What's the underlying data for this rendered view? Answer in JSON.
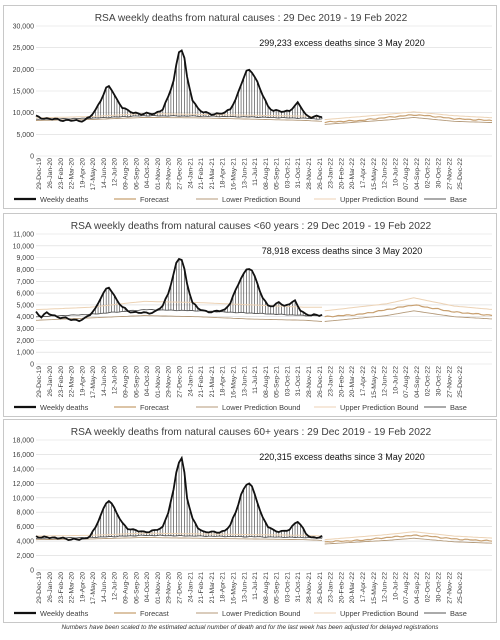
{
  "footnote": "Numbers have been scaled to the estimated actual number of death and for the last week has been adjusted for delayed registrations",
  "colors": {
    "weekly": "#111111",
    "forecast": "#c8a070",
    "lower": "#b49a7a",
    "upper": "#ecd2b4",
    "base": "#555555",
    "grid": "#d9d9d9"
  },
  "x_ticks": [
    "29-Dec-19",
    "26-Jan-20",
    "23-Feb-20",
    "22-Mar-20",
    "19-Apr-20",
    "17-May-20",
    "14-Jun-20",
    "12-Jul-20",
    "09-Aug-20",
    "06-Sep-20",
    "04-Oct-20",
    "01-Nov-20",
    "29-Nov-20",
    "27-Dec-20",
    "24-Jan-21",
    "21-Feb-21",
    "21-Mar-21",
    "18-Apr-21",
    "16-May-21",
    "13-Jun-21",
    "11-Jul-21",
    "08-Aug-21",
    "05-Sep-21",
    "03-Oct-21",
    "31-Oct-21",
    "28-Nov-21",
    "26-Dec-21",
    "23-Jan-22",
    "20-Feb-22",
    "20-Mar-22",
    "17-Apr-22",
    "15-May-22",
    "12-Jun-22",
    "10-Jul-22",
    "07-Aug-22",
    "04-Sep-22",
    "02-Oct-22",
    "30-Oct-22",
    "27-Nov-22",
    "25-Dec-22"
  ],
  "chart_data": [
    {
      "type": "line",
      "title": "RSA weekly deaths from natural causes : 29 Dec 2019 - 19 Feb 2022",
      "annotation": "299,233 excess deaths since 3 May 2020",
      "ylim": [
        0,
        30000
      ],
      "y_ticks": [
        "0",
        "5,000",
        "10,000",
        "15,000",
        "20,000",
        "25,000",
        "30,000"
      ],
      "legend": [
        "Weekly deaths",
        "Forecast",
        "Lower Prediction Bound",
        "Upper Prediction Bound",
        "Base"
      ],
      "anchors": {
        "weekly": [
          [
            0,
            9100
          ],
          [
            4,
            8600
          ],
          [
            8,
            8400
          ],
          [
            12,
            8200
          ],
          [
            16,
            8100
          ],
          [
            18,
            8300
          ],
          [
            20,
            9000
          ],
          [
            22,
            10500
          ],
          [
            24,
            13000
          ],
          [
            26,
            15600
          ],
          [
            27,
            16000
          ],
          [
            28,
            15300
          ],
          [
            30,
            13000
          ],
          [
            32,
            11300
          ],
          [
            34,
            10400
          ],
          [
            36,
            10000
          ],
          [
            40,
            9700
          ],
          [
            44,
            9800
          ],
          [
            47,
            10800
          ],
          [
            49,
            13500
          ],
          [
            51,
            17500
          ],
          [
            52,
            21000
          ],
          [
            53,
            24000
          ],
          [
            54,
            24500
          ],
          [
            55,
            22500
          ],
          [
            56,
            18000
          ],
          [
            58,
            13000
          ],
          [
            60,
            11000
          ],
          [
            62,
            10000
          ],
          [
            66,
            9700
          ],
          [
            70,
            9900
          ],
          [
            72,
            11000
          ],
          [
            74,
            13000
          ],
          [
            76,
            16500
          ],
          [
            78,
            19500
          ],
          [
            79,
            20000
          ],
          [
            80,
            19500
          ],
          [
            82,
            17000
          ],
          [
            84,
            14000
          ],
          [
            86,
            11500
          ],
          [
            88,
            10500
          ],
          [
            92,
            10200
          ],
          [
            94,
            10600
          ],
          [
            96,
            11500
          ],
          [
            97,
            12200
          ],
          [
            98,
            11500
          ],
          [
            100,
            9500
          ],
          [
            102,
            9000
          ],
          [
            106,
            9100
          ]
        ],
        "base": [
          [
            0,
            8500
          ],
          [
            20,
            8700
          ],
          [
            40,
            9300
          ],
          [
            60,
            9200
          ],
          [
            80,
            9000
          ],
          [
            100,
            8700
          ],
          [
            106,
            8500
          ]
        ],
        "lower": [
          [
            0,
            8200
          ],
          [
            20,
            8400
          ],
          [
            40,
            8900
          ],
          [
            60,
            8800
          ],
          [
            80,
            8500
          ],
          [
            100,
            8200
          ],
          [
            106,
            8000
          ]
        ],
        "upper": [
          [
            0,
            8800
          ],
          [
            20,
            9100
          ],
          [
            40,
            9800
          ],
          [
            60,
            9600
          ],
          [
            80,
            9400
          ],
          [
            100,
            9200
          ],
          [
            106,
            9000
          ]
        ],
        "forecast": [
          [
            107,
            7800
          ],
          [
            120,
            8200
          ],
          [
            130,
            8900
          ],
          [
            140,
            9500
          ],
          [
            145,
            9300
          ],
          [
            155,
            8600
          ],
          [
            165,
            8300
          ],
          [
            170,
            8200
          ]
        ],
        "f_lower": [
          [
            107,
            7300
          ],
          [
            130,
            8300
          ],
          [
            140,
            8900
          ],
          [
            155,
            8000
          ],
          [
            170,
            7700
          ]
        ],
        "f_upper": [
          [
            107,
            8400
          ],
          [
            130,
            9600
          ],
          [
            140,
            10200
          ],
          [
            155,
            9300
          ],
          [
            170,
            8800
          ]
        ]
      }
    },
    {
      "type": "line",
      "title": "RSA weekly deaths from natural causes <60 years : 29 Dec 2019 - 19 Feb 2022",
      "annotation": "78,918 excess deaths since 3 May 2020",
      "ylim": [
        0,
        11000
      ],
      "y_ticks": [
        "0",
        "1,000",
        "2,000",
        "3,000",
        "4,000",
        "5,000",
        "6,000",
        "7,000",
        "8,000",
        "9,000",
        "10,000",
        "11,000"
      ],
      "legend": [
        "Weekly deaths",
        "Forecast",
        "Lower Prediction Bound",
        "Upper Prediction Bound",
        "Base"
      ],
      "anchors": {
        "weekly": [
          [
            0,
            4400
          ],
          [
            2,
            4000
          ],
          [
            4,
            4300
          ],
          [
            8,
            4000
          ],
          [
            12,
            3800
          ],
          [
            16,
            3700
          ],
          [
            18,
            3800
          ],
          [
            20,
            4200
          ],
          [
            22,
            4700
          ],
          [
            24,
            5600
          ],
          [
            26,
            6300
          ],
          [
            27,
            6500
          ],
          [
            28,
            6200
          ],
          [
            30,
            5400
          ],
          [
            32,
            4800
          ],
          [
            34,
            4500
          ],
          [
            36,
            4400
          ],
          [
            40,
            4300
          ],
          [
            44,
            4400
          ],
          [
            47,
            4900
          ],
          [
            49,
            6000
          ],
          [
            51,
            7600
          ],
          [
            52,
            8500
          ],
          [
            53,
            8900
          ],
          [
            54,
            8800
          ],
          [
            55,
            8000
          ],
          [
            56,
            6800
          ],
          [
            58,
            5200
          ],
          [
            60,
            4700
          ],
          [
            62,
            4500
          ],
          [
            66,
            4400
          ],
          [
            70,
            4600
          ],
          [
            72,
            5200
          ],
          [
            74,
            6200
          ],
          [
            76,
            7300
          ],
          [
            78,
            8000
          ],
          [
            79,
            8100
          ],
          [
            80,
            7900
          ],
          [
            82,
            6800
          ],
          [
            84,
            5600
          ],
          [
            86,
            5000
          ],
          [
            88,
            4800
          ],
          [
            90,
            5300
          ],
          [
            92,
            4900
          ],
          [
            94,
            5100
          ],
          [
            96,
            5300
          ],
          [
            98,
            4600
          ],
          [
            100,
            4200
          ],
          [
            102,
            4100
          ],
          [
            106,
            4200
          ]
        ],
        "base": [
          [
            0,
            4000
          ],
          [
            20,
            4200
          ],
          [
            40,
            4600
          ],
          [
            60,
            4500
          ],
          [
            80,
            4300
          ],
          [
            100,
            4100
          ],
          [
            106,
            4100
          ]
        ],
        "lower": [
          [
            0,
            3700
          ],
          [
            20,
            3900
          ],
          [
            40,
            4100
          ],
          [
            60,
            4000
          ],
          [
            80,
            3800
          ],
          [
            100,
            3700
          ],
          [
            106,
            3600
          ]
        ],
        "upper": [
          [
            0,
            4600
          ],
          [
            20,
            4800
          ],
          [
            40,
            5300
          ],
          [
            60,
            5200
          ],
          [
            80,
            5000
          ],
          [
            100,
            4800
          ],
          [
            106,
            4800
          ]
        ],
        "forecast": [
          [
            107,
            4000
          ],
          [
            120,
            4200
          ],
          [
            130,
            4600
          ],
          [
            140,
            5000
          ],
          [
            145,
            4800
          ],
          [
            155,
            4400
          ],
          [
            165,
            4200
          ],
          [
            170,
            4100
          ]
        ],
        "f_lower": [
          [
            107,
            3600
          ],
          [
            130,
            4100
          ],
          [
            140,
            4500
          ],
          [
            155,
            4000
          ],
          [
            170,
            3800
          ]
        ],
        "f_upper": [
          [
            107,
            4500
          ],
          [
            130,
            5100
          ],
          [
            140,
            5600
          ],
          [
            155,
            4900
          ],
          [
            170,
            4600
          ]
        ]
      }
    },
    {
      "type": "line",
      "title": "RSA weekly deaths from natural causes 60+ years : 29 Dec 2019 - 19 Feb 2022",
      "annotation": "220,315 excess deaths since 3 May 2020",
      "ylim": [
        0,
        18000
      ],
      "y_ticks": [
        "0",
        "2,000",
        "4,000",
        "6,000",
        "8,000",
        "10,000",
        "12,000",
        "14,000",
        "16,000",
        "18,000"
      ],
      "legend": [
        "Weekly deaths",
        "Forecast",
        "Lower Prediction Bound",
        "Upper Prediction Bound",
        "Base"
      ],
      "anchors": {
        "weekly": [
          [
            0,
            4700
          ],
          [
            2,
            4400
          ],
          [
            4,
            4600
          ],
          [
            8,
            4400
          ],
          [
            12,
            4300
          ],
          [
            16,
            4200
          ],
          [
            18,
            4300
          ],
          [
            20,
            4800
          ],
          [
            22,
            5800
          ],
          [
            24,
            7600
          ],
          [
            26,
            9300
          ],
          [
            27,
            9700
          ],
          [
            28,
            9200
          ],
          [
            30,
            7800
          ],
          [
            32,
            6500
          ],
          [
            34,
            5800
          ],
          [
            36,
            5500
          ],
          [
            40,
            5300
          ],
          [
            44,
            5400
          ],
          [
            47,
            6000
          ],
          [
            49,
            8000
          ],
          [
            51,
            11000
          ],
          [
            52,
            13500
          ],
          [
            53,
            15000
          ],
          [
            54,
            15500
          ],
          [
            55,
            13500
          ],
          [
            56,
            10000
          ],
          [
            58,
            7000
          ],
          [
            60,
            5900
          ],
          [
            62,
            5300
          ],
          [
            66,
            5200
          ],
          [
            70,
            5400
          ],
          [
            72,
            6200
          ],
          [
            74,
            8000
          ],
          [
            76,
            10500
          ],
          [
            78,
            11800
          ],
          [
            79,
            12000
          ],
          [
            80,
            11500
          ],
          [
            82,
            9500
          ],
          [
            84,
            7200
          ],
          [
            86,
            6000
          ],
          [
            88,
            5500
          ],
          [
            92,
            5300
          ],
          [
            94,
            5600
          ],
          [
            96,
            6500
          ],
          [
            97,
            6800
          ],
          [
            98,
            6300
          ],
          [
            100,
            5000
          ],
          [
            102,
            4500
          ],
          [
            106,
            4600
          ]
        ],
        "base": [
          [
            0,
            4400
          ],
          [
            20,
            4500
          ],
          [
            40,
            4800
          ],
          [
            60,
            4700
          ],
          [
            80,
            4600
          ],
          [
            100,
            4500
          ],
          [
            106,
            4400
          ]
        ],
        "lower": [
          [
            0,
            4200
          ],
          [
            20,
            4300
          ],
          [
            40,
            4500
          ],
          [
            60,
            4400
          ],
          [
            80,
            4300
          ],
          [
            100,
            4200
          ],
          [
            106,
            4100
          ]
        ],
        "upper": [
          [
            0,
            4700
          ],
          [
            20,
            4800
          ],
          [
            40,
            5100
          ],
          [
            60,
            5000
          ],
          [
            80,
            4900
          ],
          [
            100,
            4800
          ],
          [
            106,
            4700
          ]
        ],
        "forecast": [
          [
            107,
            3900
          ],
          [
            120,
            4100
          ],
          [
            130,
            4500
          ],
          [
            140,
            4800
          ],
          [
            145,
            4700
          ],
          [
            155,
            4300
          ],
          [
            165,
            4100
          ],
          [
            170,
            4000
          ]
        ],
        "f_lower": [
          [
            107,
            3600
          ],
          [
            130,
            4100
          ],
          [
            140,
            4400
          ],
          [
            155,
            3900
          ],
          [
            170,
            3700
          ]
        ],
        "f_upper": [
          [
            107,
            4200
          ],
          [
            130,
            4900
          ],
          [
            140,
            5300
          ],
          [
            155,
            4700
          ],
          [
            170,
            4400
          ]
        ]
      }
    }
  ]
}
